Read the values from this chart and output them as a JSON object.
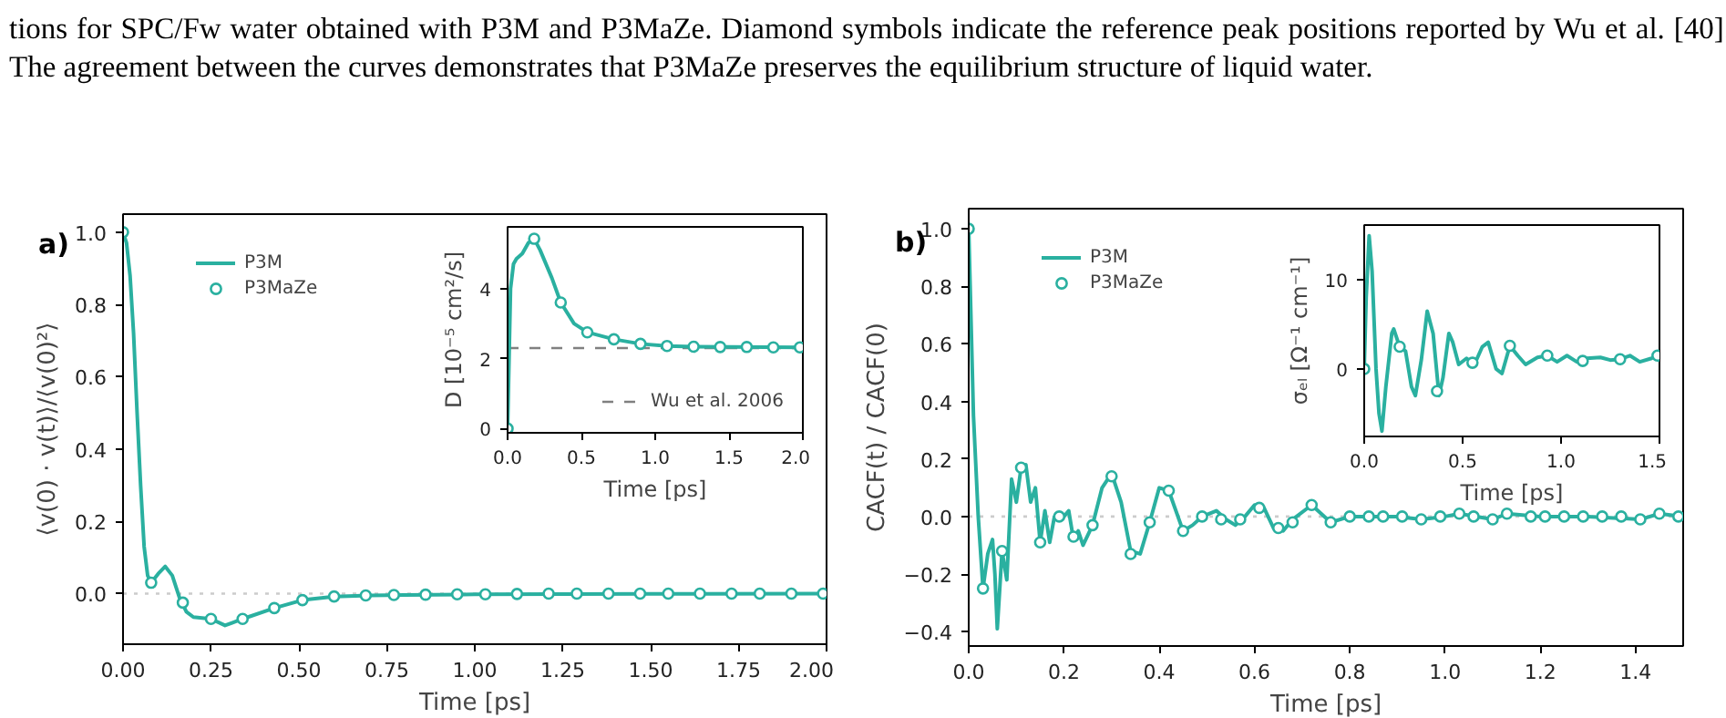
{
  "chart_data": [
    {
      "type": "line",
      "xlabel": "Time [ps]",
      "ylabel": "⟨v(0) · v(t)⟩/⟨v(0)²⟩",
      "xlim": [
        0,
        2
      ],
      "ylim": [
        -0.14,
        1.05
      ],
      "xticks": [
        {
          "value": 0,
          "label": "0.00"
        },
        {
          "value": 0.25,
          "label": "0.25"
        },
        {
          "value": 0.5,
          "label": "0.50"
        },
        {
          "value": 0.75,
          "label": "0.75"
        },
        {
          "value": 1,
          "label": "1.00"
        },
        {
          "value": 1.25,
          "label": "1.25"
        },
        {
          "value": 1.5,
          "label": "1.50"
        },
        {
          "value": 1.75,
          "label": "1.75"
        },
        {
          "value": 2,
          "label": "2.00"
        }
      ],
      "yticks": [
        {
          "value": 0,
          "label": "0.0"
        },
        0.2,
        0.4,
        0.6,
        0.8,
        {
          "value": 1,
          "label": "1.0"
        }
      ],
      "grid": false,
      "legend": "top left",
      "annotations": [
        "a)",
        "tions for SPC/Fw water obtained with P3M and P3MaZe. Diamond symbols indicate the reference peak positions reported by Wu et al. [40]. The agreement between the curves demonstrates that P3MaZe preserves the equilibrium structure of liquid water."
      ],
      "ref_lines": [
        {
          "axis": "y",
          "value": 0,
          "label": null,
          "color": "#cccccc",
          "line_style": "dotted"
        }
      ],
      "series": [
        {
          "name": "P3M",
          "color": "#2ab0a0",
          "line_style": "solid",
          "x": [
            0,
            0.01,
            0.02,
            0.03,
            0.04,
            0.05,
            0.06,
            0.07,
            0.08,
            0.1,
            0.12,
            0.14,
            0.16,
            0.18,
            0.2,
            0.25,
            0.29,
            0.34,
            0.43,
            0.51,
            0.6,
            0.7,
            0.8,
            1.0,
            1.5,
            2.0
          ],
          "values": [
            1.0,
            0.97,
            0.88,
            0.72,
            0.5,
            0.3,
            0.13,
            0.05,
            0.03,
            0.055,
            0.075,
            0.05,
            -0.01,
            -0.05,
            -0.065,
            -0.07,
            -0.088,
            -0.07,
            -0.04,
            -0.018,
            -0.008,
            -0.005,
            -0.004,
            -0.002,
            -0.001,
            0.0
          ]
        },
        {
          "name": "P3MaZe",
          "type": "scatter",
          "color": "#2ab0a0",
          "marker": "circle",
          "x": [
            0,
            0.08,
            0.17,
            0.25,
            0.34,
            0.43,
            0.51,
            0.6,
            0.69,
            0.77,
            0.86,
            0.95,
            1.03,
            1.12,
            1.21,
            1.29,
            1.38,
            1.47,
            1.55,
            1.64,
            1.73,
            1.81,
            1.9,
            1.99
          ],
          "values": [
            1.0,
            0.03,
            -0.025,
            -0.07,
            -0.07,
            -0.04,
            -0.018,
            -0.008,
            -0.005,
            -0.004,
            -0.003,
            -0.002,
            -0.002,
            -0.001,
            0.0,
            0.0,
            0.0,
            0.0,
            0.0,
            0.0,
            0.0,
            0.0,
            0.0,
            0.0
          ]
        }
      ]
    },
    {
      "type": "line",
      "xlabel": "Time [ps]",
      "ylabel": "D [10⁻⁵ cm²/s]",
      "xlim": [
        0,
        2
      ],
      "ylim": [
        -0.12,
        5.76
      ],
      "xticks": [
        {
          "value": 0,
          "label": "0.0"
        },
        0.5,
        {
          "value": 1,
          "label": "1.0"
        },
        1.5,
        {
          "value": 2,
          "label": "2.0"
        }
      ],
      "yticks": [
        0,
        2,
        4
      ],
      "grid": false,
      "legend": "bottom right",
      "ref_lines": [
        {
          "axis": "y",
          "value": 2.3,
          "label": "Wu et al. 2006",
          "color": "#808080",
          "line_style": "dashed"
        }
      ],
      "series": [
        {
          "color": "#2ab0a0",
          "line_style": "solid",
          "x": [
            0,
            0.02,
            0.04,
            0.06,
            0.1,
            0.14,
            0.18,
            0.22,
            0.3,
            0.36,
            0.45,
            0.54,
            0.72,
            0.9,
            1.08,
            1.26,
            2.0
          ],
          "values": [
            0,
            4.0,
            4.7,
            4.85,
            5.0,
            5.3,
            5.42,
            5.1,
            4.3,
            3.6,
            3.0,
            2.75,
            2.55,
            2.42,
            2.36,
            2.34,
            2.32
          ]
        },
        {
          "type": "scatter",
          "color": "#2ab0a0",
          "marker": "circle",
          "x": [
            0,
            0.18,
            0.36,
            0.54,
            0.72,
            0.9,
            1.08,
            1.26,
            1.44,
            1.62,
            1.8,
            1.98
          ],
          "values": [
            0,
            5.42,
            3.6,
            2.75,
            2.55,
            2.42,
            2.36,
            2.34,
            2.33,
            2.33,
            2.32,
            2.32
          ]
        }
      ]
    },
    {
      "type": "line",
      "xlabel": "Time [ps]",
      "ylabel": "CACF(t) / CACF(0)",
      "xlim": [
        0,
        1.5
      ],
      "ylim": [
        -0.45,
        1.07
      ],
      "xticks": [
        {
          "value": 0,
          "label": "0.0"
        },
        0.2,
        0.4,
        0.6,
        0.8,
        {
          "value": 1,
          "label": "1.0"
        },
        1.2,
        1.4
      ],
      "yticks": [
        {
          "value": -0.4,
          "label": "−0.4"
        },
        {
          "value": -0.2,
          "label": "−0.2"
        },
        {
          "value": 0,
          "label": "0.0"
        },
        0.2,
        0.4,
        0.6,
        0.8,
        {
          "value": 1,
          "label": "1.0"
        }
      ],
      "grid": false,
      "legend": "top left",
      "annotations": [
        "b)"
      ],
      "ref_lines": [
        {
          "axis": "y",
          "value": 0,
          "label": null,
          "color": "#cccccc",
          "line_style": "dotted"
        }
      ],
      "series": [
        {
          "name": "P3M",
          "color": "#2ab0a0",
          "line_style": "solid",
          "x": [
            0,
            0.01,
            0.02,
            0.03,
            0.04,
            0.05,
            0.055,
            0.06,
            0.07,
            0.08,
            0.09,
            0.1,
            0.11,
            0.12,
            0.13,
            0.14,
            0.15,
            0.16,
            0.17,
            0.18,
            0.2,
            0.21,
            0.22,
            0.23,
            0.24,
            0.26,
            0.28,
            0.3,
            0.32,
            0.34,
            0.36,
            0.38,
            0.4,
            0.42,
            0.45,
            0.47,
            0.49,
            0.52,
            0.54,
            0.56,
            0.58,
            0.6,
            0.62,
            0.64,
            0.66,
            0.68,
            0.72,
            0.74,
            0.76,
            0.8,
            0.9,
            0.95,
            1.0,
            1.03,
            1.1,
            1.13,
            1.2,
            1.3,
            1.41,
            1.45,
            1.5
          ],
          "values": [
            1.0,
            0.35,
            0.0,
            -0.25,
            -0.13,
            -0.08,
            -0.2,
            -0.39,
            -0.12,
            -0.22,
            0.13,
            0.05,
            0.17,
            0.18,
            0.05,
            0.1,
            -0.09,
            0.02,
            -0.09,
            0.0,
            0.0,
            0.02,
            -0.08,
            -0.05,
            -0.1,
            -0.03,
            0.1,
            0.15,
            0.05,
            -0.12,
            -0.13,
            -0.02,
            0.1,
            0.09,
            -0.05,
            -0.03,
            0.0,
            0.02,
            -0.01,
            -0.03,
            0.0,
            0.04,
            0.03,
            -0.04,
            -0.05,
            -0.01,
            0.04,
            0.01,
            -0.02,
            0.0,
            0.0,
            -0.01,
            0.0,
            0.01,
            -0.01,
            0.01,
            0.0,
            0.0,
            -0.01,
            0.01,
            0.0
          ]
        },
        {
          "name": "P3MaZe",
          "type": "scatter",
          "color": "#2ab0a0",
          "marker": "circle",
          "x": [
            0,
            0.03,
            0.07,
            0.11,
            0.15,
            0.19,
            0.22,
            0.26,
            0.3,
            0.34,
            0.38,
            0.42,
            0.45,
            0.49,
            0.53,
            0.57,
            0.61,
            0.65,
            0.68,
            0.72,
            0.76,
            0.8,
            0.84,
            0.87,
            0.91,
            0.95,
            0.99,
            1.03,
            1.06,
            1.1,
            1.13,
            1.18,
            1.21,
            1.25,
            1.29,
            1.33,
            1.37,
            1.41,
            1.45,
            1.49
          ],
          "values": [
            1.0,
            -0.25,
            -0.12,
            0.17,
            -0.09,
            0.0,
            -0.07,
            -0.03,
            0.14,
            -0.13,
            -0.02,
            0.09,
            -0.05,
            0.0,
            -0.01,
            -0.01,
            0.03,
            -0.04,
            -0.02,
            0.04,
            -0.02,
            0.0,
            0.0,
            0.0,
            0.0,
            -0.01,
            0.0,
            0.01,
            0.0,
            -0.01,
            0.01,
            0.0,
            0.0,
            0.0,
            0.0,
            0.0,
            0.0,
            -0.01,
            0.01,
            0.0
          ]
        }
      ]
    },
    {
      "type": "line",
      "xlabel": "Time [ps]",
      "ylabel": "σₑₗ [Ω⁻¹ cm⁻¹]",
      "xlim": [
        0,
        1.5
      ],
      "ylim": [
        -7.6,
        16.2
      ],
      "xticks": [
        {
          "value": 0,
          "label": "0.0"
        },
        0.5,
        {
          "value": 1,
          "label": "1.0"
        },
        1.5
      ],
      "yticks": [
        0,
        10
      ],
      "grid": false,
      "series": [
        {
          "color": "#2ab0a0",
          "line_style": "solid",
          "x": [
            0,
            0.01,
            0.025,
            0.04,
            0.06,
            0.075,
            0.09,
            0.11,
            0.14,
            0.15,
            0.18,
            0.21,
            0.24,
            0.26,
            0.29,
            0.32,
            0.35,
            0.38,
            0.4,
            0.43,
            0.45,
            0.48,
            0.52,
            0.56,
            0.6,
            0.63,
            0.67,
            0.7,
            0.74,
            0.78,
            0.82,
            0.88,
            0.93,
            0.98,
            1.03,
            1.08,
            1.13,
            1.2,
            1.25,
            1.3,
            1.35,
            1.4,
            1.46,
            1.5
          ],
          "values": [
            0,
            8,
            15,
            11,
            0,
            -5,
            -7,
            -2,
            4,
            4.5,
            2.5,
            2,
            -2,
            -3,
            1,
            6.5,
            4,
            -3,
            -1,
            4,
            3,
            0.5,
            1.2,
            0.5,
            2.5,
            3,
            0,
            -0.5,
            2.6,
            1.5,
            0.5,
            1.3,
            1.5,
            0.8,
            1.5,
            0.8,
            1.2,
            1.3,
            1.0,
            1.1,
            1.5,
            0.8,
            1.2,
            1.5
          ]
        },
        {
          "type": "scatter",
          "color": "#2ab0a0",
          "marker": "circle",
          "x": [
            0,
            0.18,
            0.37,
            0.55,
            0.74,
            0.93,
            1.11,
            1.3,
            1.49
          ],
          "values": [
            0,
            2.5,
            -2.5,
            0.7,
            2.6,
            1.5,
            0.9,
            1.1,
            1.5
          ]
        }
      ]
    }
  ]
}
